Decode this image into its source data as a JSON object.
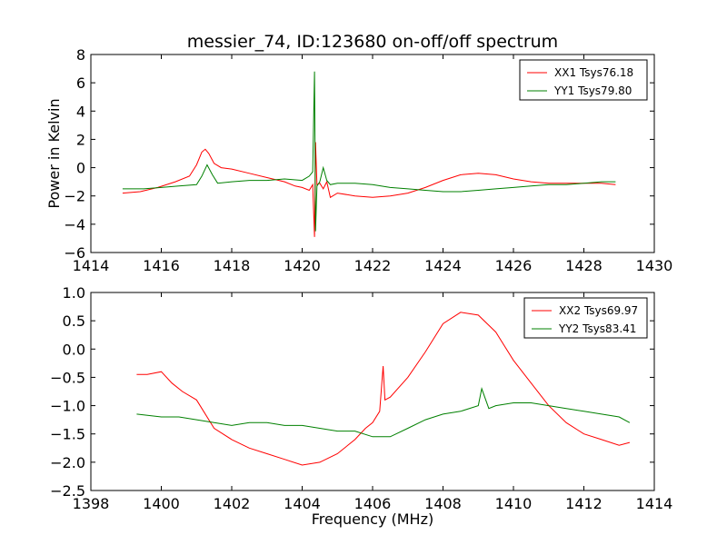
{
  "chart_data": [
    {
      "type": "line",
      "title": "messier_74, ID:123680 on-off/off spectrum",
      "xlabel": "",
      "ylabel": "Power in Kelvin",
      "xlim": [
        1414,
        1430
      ],
      "ylim": [
        -6,
        8
      ],
      "xticks": [
        1414,
        1416,
        1418,
        1420,
        1422,
        1424,
        1426,
        1428,
        1430
      ],
      "yticks": [
        -6,
        -4,
        -2,
        0,
        2,
        4,
        6,
        8
      ],
      "legend_position": "upper-right",
      "grid": false,
      "series": [
        {
          "name": "XX1 Tsys76.18",
          "color": "#ff0000",
          "x": [
            1414.9,
            1415.4,
            1415.9,
            1416.4,
            1416.8,
            1417.0,
            1417.15,
            1417.25,
            1417.35,
            1417.5,
            1417.7,
            1418.0,
            1418.5,
            1419.0,
            1419.5,
            1419.8,
            1420.0,
            1420.2,
            1420.3,
            1420.35,
            1420.38,
            1420.42,
            1420.5,
            1420.6,
            1420.7,
            1420.8,
            1421.0,
            1421.5,
            1422.0,
            1422.5,
            1423.0,
            1423.5,
            1424.0,
            1424.5,
            1425.0,
            1425.5,
            1426.0,
            1426.5,
            1427.0,
            1427.5,
            1428.0,
            1428.5,
            1428.9
          ],
          "y": [
            -1.8,
            -1.7,
            -1.4,
            -1.0,
            -0.6,
            0.2,
            1.1,
            1.3,
            1.0,
            0.3,
            0.0,
            -0.1,
            -0.4,
            -0.7,
            -1.0,
            -1.3,
            -1.4,
            -1.6,
            -1.2,
            -4.9,
            1.8,
            -1.2,
            -1.1,
            -1.5,
            -1.0,
            -2.1,
            -1.8,
            -2.0,
            -2.1,
            -2.0,
            -1.8,
            -1.4,
            -0.9,
            -0.5,
            -0.4,
            -0.5,
            -0.8,
            -1.0,
            -1.1,
            -1.1,
            -1.1,
            -1.1,
            -1.2
          ]
        },
        {
          "name": "YY1 Tsys79.80",
          "color": "#008000",
          "x": [
            1414.9,
            1415.5,
            1416.0,
            1416.5,
            1417.0,
            1417.15,
            1417.3,
            1417.45,
            1417.6,
            1418.0,
            1418.5,
            1419.0,
            1419.5,
            1420.0,
            1420.2,
            1420.3,
            1420.35,
            1420.38,
            1420.42,
            1420.5,
            1420.6,
            1420.7,
            1420.8,
            1421.0,
            1421.5,
            1422.0,
            1422.5,
            1423.0,
            1423.5,
            1424.0,
            1424.5,
            1425.0,
            1425.5,
            1426.0,
            1426.5,
            1427.0,
            1427.5,
            1428.0,
            1428.5,
            1428.9
          ],
          "y": [
            -1.5,
            -1.5,
            -1.4,
            -1.3,
            -1.2,
            -0.6,
            0.2,
            -0.5,
            -1.1,
            -1.0,
            -0.9,
            -0.9,
            -0.8,
            -0.9,
            -0.6,
            -0.3,
            6.8,
            -4.5,
            -1.3,
            -1.0,
            0.0,
            -0.9,
            -1.2,
            -1.1,
            -1.1,
            -1.2,
            -1.4,
            -1.5,
            -1.6,
            -1.7,
            -1.7,
            -1.6,
            -1.5,
            -1.4,
            -1.3,
            -1.2,
            -1.2,
            -1.1,
            -1.0,
            -1.0
          ]
        }
      ]
    },
    {
      "type": "line",
      "title": "",
      "xlabel": "Frequency (MHz)",
      "ylabel": "",
      "xlim": [
        1398,
        1414
      ],
      "ylim": [
        -2.5,
        1.0
      ],
      "xticks": [
        1398,
        1400,
        1402,
        1404,
        1406,
        1408,
        1410,
        1412,
        1414
      ],
      "yticks": [
        -2.5,
        -2.0,
        -1.5,
        -1.0,
        -0.5,
        0.0,
        0.5,
        1.0
      ],
      "legend_position": "upper-right",
      "grid": false,
      "series": [
        {
          "name": "XX2 Tsys69.97",
          "color": "#ff0000",
          "x": [
            1399.3,
            1399.6,
            1400.0,
            1400.3,
            1400.6,
            1401.0,
            1401.5,
            1402.0,
            1402.5,
            1403.0,
            1403.5,
            1404.0,
            1404.5,
            1405.0,
            1405.5,
            1405.8,
            1406.0,
            1406.2,
            1406.3,
            1406.35,
            1406.5,
            1407.0,
            1407.5,
            1408.0,
            1408.5,
            1409.0,
            1409.5,
            1410.0,
            1410.5,
            1411.0,
            1411.5,
            1412.0,
            1412.5,
            1413.0,
            1413.3
          ],
          "y": [
            -0.45,
            -0.45,
            -0.4,
            -0.6,
            -0.75,
            -0.9,
            -1.4,
            -1.6,
            -1.75,
            -1.85,
            -1.95,
            -2.05,
            -2.0,
            -1.85,
            -1.6,
            -1.4,
            -1.3,
            -1.1,
            -0.3,
            -0.9,
            -0.85,
            -0.5,
            -0.05,
            0.45,
            0.65,
            0.6,
            0.3,
            -0.2,
            -0.6,
            -1.0,
            -1.3,
            -1.5,
            -1.6,
            -1.7,
            -1.65
          ]
        },
        {
          "name": "YY2 Tsys83.41",
          "color": "#008000",
          "x": [
            1399.3,
            1400.0,
            1400.5,
            1401.0,
            1401.5,
            1402.0,
            1402.5,
            1403.0,
            1403.5,
            1404.0,
            1404.5,
            1405.0,
            1405.5,
            1406.0,
            1406.5,
            1407.0,
            1407.5,
            1408.0,
            1408.5,
            1409.0,
            1409.1,
            1409.3,
            1409.5,
            1410.0,
            1410.5,
            1411.0,
            1411.5,
            1412.0,
            1412.5,
            1413.0,
            1413.3
          ],
          "y": [
            -1.15,
            -1.2,
            -1.2,
            -1.25,
            -1.3,
            -1.35,
            -1.3,
            -1.3,
            -1.35,
            -1.35,
            -1.4,
            -1.45,
            -1.45,
            -1.55,
            -1.55,
            -1.4,
            -1.25,
            -1.15,
            -1.1,
            -1.0,
            -0.7,
            -1.05,
            -1.0,
            -0.95,
            -0.95,
            -1.0,
            -1.05,
            -1.1,
            -1.15,
            -1.2,
            -1.3
          ]
        }
      ]
    }
  ]
}
